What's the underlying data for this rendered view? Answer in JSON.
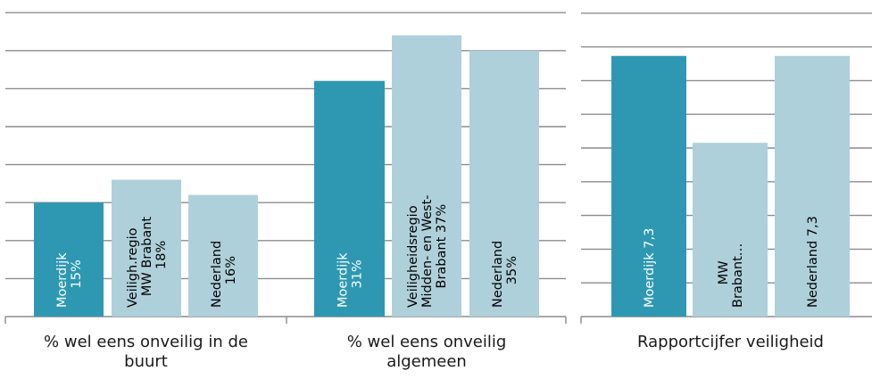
{
  "chart_data": [
    {
      "type": "bar",
      "title": "",
      "grid": true,
      "legend": "none",
      "groups": [
        {
          "category": "% wel eens onveilig in de buurt",
          "category_lines": [
            "% wel eens onveilig in de",
            "buurt"
          ],
          "bars": [
            {
              "name": "Moerdijk",
              "value": 15,
              "label_lines": [
                "Moerdijk",
                "15%"
              ],
              "color": "#2e98b3",
              "text_color": "#ffffff"
            },
            {
              "name": "Veiligh.regio MW Brabant",
              "value": 18,
              "label_lines": [
                "Veiligh.regio",
                "MW Brabant",
                "18%"
              ],
              "color": "#aed0da",
              "text_color": "#000000"
            },
            {
              "name": "Nederland",
              "value": 16,
              "label_lines": [
                "Nederland",
                "16%"
              ],
              "color": "#aed0da",
              "text_color": "#000000"
            }
          ]
        },
        {
          "category": "% wel eens onveilig algemeen",
          "category_lines": [
            "% wel eens onveilig",
            "algemeen"
          ],
          "bars": [
            {
              "name": "Moerdijk",
              "value": 31,
              "label_lines": [
                "Moerdijk",
                "31%"
              ],
              "color": "#2e98b3",
              "text_color": "#ffffff"
            },
            {
              "name": "Veiligheidsregio Midden- en West-Brabant",
              "value": 37,
              "label_lines": [
                "Veiligheidsregio",
                "Midden- en West-",
                "Brabant 37%"
              ],
              "color": "#aed0da",
              "text_color": "#000000"
            },
            {
              "name": "Nederland",
              "value": 35,
              "label_lines": [
                "Nederland",
                "35%"
              ],
              "color": "#aed0da",
              "text_color": "#000000"
            }
          ]
        }
      ],
      "ylim": [
        0,
        40
      ]
    },
    {
      "type": "bar",
      "title": "",
      "grid": true,
      "legend": "none",
      "groups": [
        {
          "category": "Rapportcijfer veiligheid",
          "category_lines": [
            "Rapportcijfer veiligheid"
          ],
          "bars": [
            {
              "name": "Moerdijk",
              "value": 7.3,
              "label_lines": [
                "Moerdijk 7,3"
              ],
              "color": "#2e98b3",
              "text_color": "#ffffff"
            },
            {
              "name": "MW Brabant",
              "value": 7.2,
              "label_lines": [
                "MW",
                "Brabant…"
              ],
              "color": "#aed0da",
              "text_color": "#000000"
            },
            {
              "name": "Nederland",
              "value": 7.3,
              "label_lines": [
                "Nederland 7,3"
              ],
              "color": "#aed0da",
              "text_color": "#000000"
            }
          ]
        }
      ],
      "ylim": [
        7.0,
        7.35
      ]
    }
  ]
}
